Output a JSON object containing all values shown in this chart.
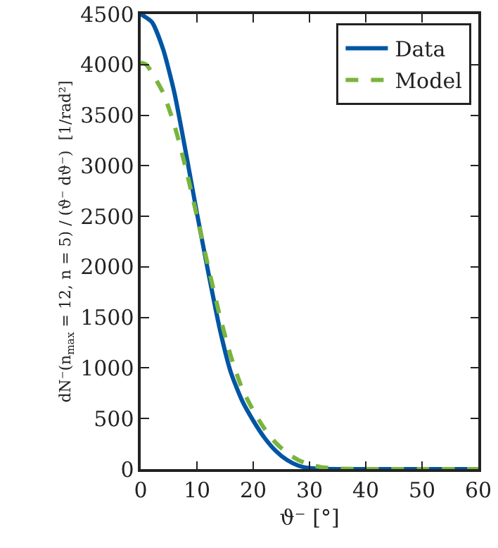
{
  "chart_data": {
    "type": "line",
    "xlabel": "ϑ⁻ [°]",
    "ylabel": "dN⁻(n$_{max}$ = 12, n = 5) / (ϑ⁻ dϑ⁻)  [1/rad²]",
    "xlim": [
      0,
      60
    ],
    "xticks": [
      0,
      10,
      20,
      30,
      40,
      50,
      60
    ],
    "ylim": [
      0,
      4500
    ],
    "yticks": [
      0,
      500,
      1000,
      1500,
      2000,
      2500,
      3000,
      3500,
      4000,
      4500
    ],
    "grid": false,
    "legend": "top right",
    "marker": "none",
    "series": [
      {
        "name": "Data",
        "color": "#0055a4",
        "line_style": "solid",
        "x": [
          0,
          2,
          4,
          6,
          8,
          10,
          12,
          14,
          16,
          18,
          20,
          22,
          24,
          26,
          28,
          30,
          32,
          35,
          60
        ],
        "values": [
          4500,
          4420,
          4150,
          3720,
          3140,
          2530,
          1950,
          1400,
          960,
          680,
          480,
          310,
          180,
          90,
          35,
          10,
          3,
          0,
          0
        ]
      },
      {
        "name": "Model",
        "color": "#7ab43c",
        "line_style": "dashed",
        "x": [
          0,
          1,
          2,
          4,
          6,
          8,
          10,
          12,
          14,
          16,
          18,
          20,
          22,
          24,
          26,
          28,
          30,
          32,
          35,
          40,
          60
        ],
        "values": [
          4020,
          4000,
          3920,
          3720,
          3400,
          2980,
          2500,
          2000,
          1530,
          1120,
          800,
          580,
          400,
          260,
          160,
          90,
          45,
          20,
          5,
          0,
          0
        ]
      }
    ]
  }
}
